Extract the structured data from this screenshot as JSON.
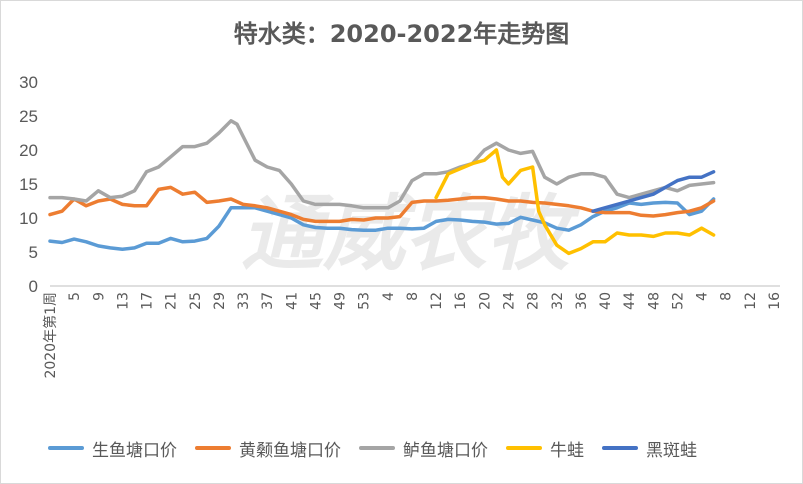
{
  "chart_data": {
    "type": "line",
    "title": "特水类：2020-2022年走势图",
    "ylim": [
      0,
      30
    ],
    "yticks": [
      0,
      5,
      10,
      15,
      20,
      25,
      30
    ],
    "x_positions": 100,
    "x_tick_labels": [
      "2020年第1周",
      "5",
      "9",
      "13",
      "17",
      "21",
      "25",
      "29",
      "33",
      "37",
      "41",
      "45",
      "49",
      "53",
      "4",
      "8",
      "12",
      "16",
      "20",
      "24",
      "28",
      "32",
      "36",
      "40",
      "44",
      "48",
      "52",
      "4",
      "8",
      "12",
      "16"
    ],
    "x_tick_indices": [
      0,
      4,
      8,
      12,
      16,
      20,
      24,
      28,
      32,
      36,
      40,
      44,
      48,
      52,
      56,
      60,
      64,
      68,
      72,
      76,
      80,
      84,
      88,
      92,
      96,
      100,
      104,
      108,
      112,
      116,
      120
    ],
    "x_total_slots": 121,
    "watermark": "通威农牧",
    "grid": false,
    "legend_position": "bottom",
    "series": [
      {
        "name": "生鱼塘口价",
        "color": "#5b9bd5",
        "x": [
          0,
          2,
          4,
          6,
          8,
          10,
          12,
          14,
          16,
          18,
          20,
          22,
          24,
          26,
          28,
          30,
          32,
          34,
          36,
          38,
          40,
          42,
          44,
          46,
          48,
          50,
          52,
          54,
          56,
          58,
          60,
          62,
          64,
          66,
          68,
          70,
          72,
          74,
          76,
          78,
          80,
          82,
          84,
          86,
          88,
          90,
          92,
          94,
          96,
          98,
          100,
          102,
          104,
          106,
          108,
          110
        ],
        "y": [
          6.6,
          6.4,
          6.9,
          6.5,
          5.9,
          5.6,
          5.4,
          5.6,
          6.3,
          6.3,
          7.0,
          6.5,
          6.6,
          7.0,
          8.8,
          11.5,
          11.5,
          11.5,
          11.0,
          10.5,
          10.0,
          9.0,
          8.6,
          8.5,
          8.5,
          8.3,
          8.2,
          8.2,
          8.5,
          8.5,
          8.4,
          8.5,
          9.5,
          9.8,
          9.7,
          9.5,
          9.4,
          9.1,
          9.2,
          10.1,
          9.7,
          9.3,
          8.5,
          8.2,
          9.0,
          10.2,
          11.0,
          11.5,
          12.2,
          12.0,
          12.2,
          12.3,
          12.2,
          10.5,
          11.0,
          12.8
        ]
      },
      {
        "name": "黄颡鱼塘口价",
        "color": "#ed7d31",
        "x": [
          0,
          2,
          4,
          6,
          8,
          10,
          12,
          14,
          16,
          18,
          20,
          22,
          24,
          26,
          28,
          30,
          32,
          34,
          36,
          38,
          40,
          42,
          44,
          46,
          48,
          50,
          52,
          54,
          56,
          58,
          60,
          62,
          64,
          66,
          68,
          70,
          72,
          74,
          76,
          78,
          80,
          82,
          84,
          86,
          88,
          90,
          92,
          94,
          96,
          98,
          100,
          102,
          104,
          106,
          108,
          110
        ],
        "y": [
          10.5,
          11.0,
          12.8,
          11.8,
          12.5,
          12.8,
          12.0,
          11.8,
          11.8,
          14.2,
          14.5,
          13.5,
          13.8,
          12.3,
          12.5,
          12.8,
          12.0,
          11.8,
          11.5,
          11.0,
          10.5,
          9.8,
          9.5,
          9.5,
          9.5,
          9.8,
          9.7,
          10.0,
          10.0,
          10.2,
          12.3,
          12.5,
          12.5,
          12.6,
          12.8,
          13.0,
          13.0,
          12.8,
          12.5,
          12.5,
          12.3,
          12.2,
          12.0,
          11.8,
          11.5,
          11.0,
          10.8,
          10.8,
          10.8,
          10.4,
          10.3,
          10.5,
          10.8,
          11.0,
          11.5,
          12.5
        ]
      },
      {
        "name": "鲈鱼塘口价",
        "color": "#a5a5a5",
        "x": [
          0,
          2,
          4,
          6,
          8,
          10,
          12,
          14,
          16,
          18,
          20,
          22,
          24,
          26,
          28,
          30,
          31,
          32,
          34,
          36,
          38,
          40,
          42,
          44,
          46,
          48,
          50,
          52,
          54,
          56,
          58,
          60,
          62,
          64,
          66,
          68,
          70,
          72,
          74,
          76,
          78,
          80,
          82,
          84,
          86,
          88,
          90,
          92,
          94,
          96,
          98,
          100,
          102,
          104,
          106,
          108,
          110
        ],
        "y": [
          13.0,
          13.0,
          12.8,
          12.5,
          14.0,
          13.0,
          13.2,
          14.0,
          16.8,
          17.5,
          19.0,
          20.5,
          20.5,
          21.0,
          22.5,
          24.3,
          23.8,
          22.0,
          18.5,
          17.5,
          17.0,
          15.0,
          12.5,
          12.0,
          12.0,
          12.0,
          11.8,
          11.5,
          11.5,
          11.5,
          12.5,
          15.5,
          16.5,
          16.5,
          16.8,
          17.5,
          18.0,
          20.0,
          21.0,
          20.0,
          19.5,
          19.8,
          16.0,
          15.0,
          16.0,
          16.5,
          16.5,
          16.0,
          13.5,
          13.0,
          13.5,
          14.0,
          14.5,
          14.0,
          14.8,
          15.0,
          15.2
        ]
      },
      {
        "name": "牛蛙",
        "color": "#ffc000",
        "x": [
          64,
          66,
          70,
          72,
          74,
          75,
          76,
          78,
          80,
          81,
          82,
          84,
          86,
          88,
          90,
          92,
          94,
          96,
          98,
          100,
          102,
          104,
          106,
          108,
          110
        ],
        "y": [
          13.0,
          16.5,
          18.0,
          18.5,
          20.0,
          16.0,
          15.0,
          17.0,
          17.5,
          11.0,
          9.0,
          6.0,
          4.8,
          5.5,
          6.5,
          6.5,
          7.8,
          7.5,
          7.5,
          7.3,
          7.8,
          7.8,
          7.5,
          8.5,
          7.5
        ]
      },
      {
        "name": "黑斑蛙",
        "color": "#4472c4",
        "x": [
          90,
          92,
          94,
          96,
          98,
          100,
          102,
          104,
          106,
          108,
          110
        ],
        "y": [
          11.0,
          11.5,
          12.0,
          12.5,
          13.0,
          13.5,
          14.5,
          15.5,
          16.0,
          16.0,
          16.8
        ]
      }
    ]
  }
}
